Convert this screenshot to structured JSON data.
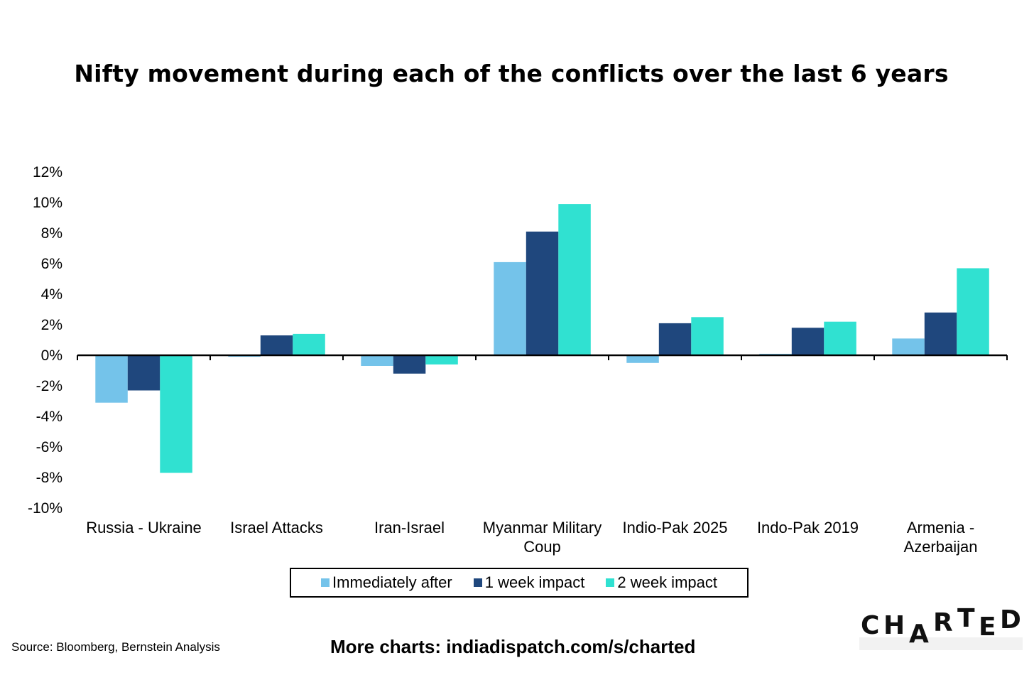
{
  "chart_data": {
    "type": "bar",
    "title": "Nifty movement during each of the conflicts over the last 6 years",
    "categories": [
      [
        "Russia - Ukraine"
      ],
      [
        "Israel Attacks"
      ],
      [
        "Iran-Israel"
      ],
      [
        "Myanmar Military",
        "Coup"
      ],
      [
        "Indio-Pak 2025"
      ],
      [
        "Indo-Pak 2019"
      ],
      [
        "Armenia -",
        "Azerbaijan"
      ]
    ],
    "series": [
      {
        "name": "Immediately after",
        "color": "#74c3ea",
        "values": [
          -3.1,
          -0.1,
          -0.7,
          6.1,
          -0.5,
          0.1,
          1.1
        ]
      },
      {
        "name": "1 week impact",
        "color": "#1f477d",
        "values": [
          -2.3,
          1.3,
          -1.2,
          8.1,
          2.1,
          1.8,
          2.8
        ]
      },
      {
        "name": "2 week impact",
        "color": "#30e1d1",
        "values": [
          -7.7,
          1.4,
          -0.6,
          9.9,
          2.5,
          2.2,
          5.7
        ]
      }
    ],
    "yticks": [
      "12%",
      "10%",
      "8%",
      "6%",
      "4%",
      "2%",
      "0%",
      "-2%",
      "-4%",
      "-6%",
      "-8%",
      "-10%"
    ],
    "ylim": [
      -10,
      12
    ],
    "xlabel": "",
    "ylabel": "",
    "legend": "bottom-center"
  },
  "footer": {
    "source": "Source: Bloomberg, Bernstein Analysis",
    "more_charts": "More charts: indiadispatch.com/s/charted"
  },
  "brand": {
    "letters": [
      "C",
      "H",
      "A",
      "R",
      "T",
      "E",
      "D"
    ]
  }
}
